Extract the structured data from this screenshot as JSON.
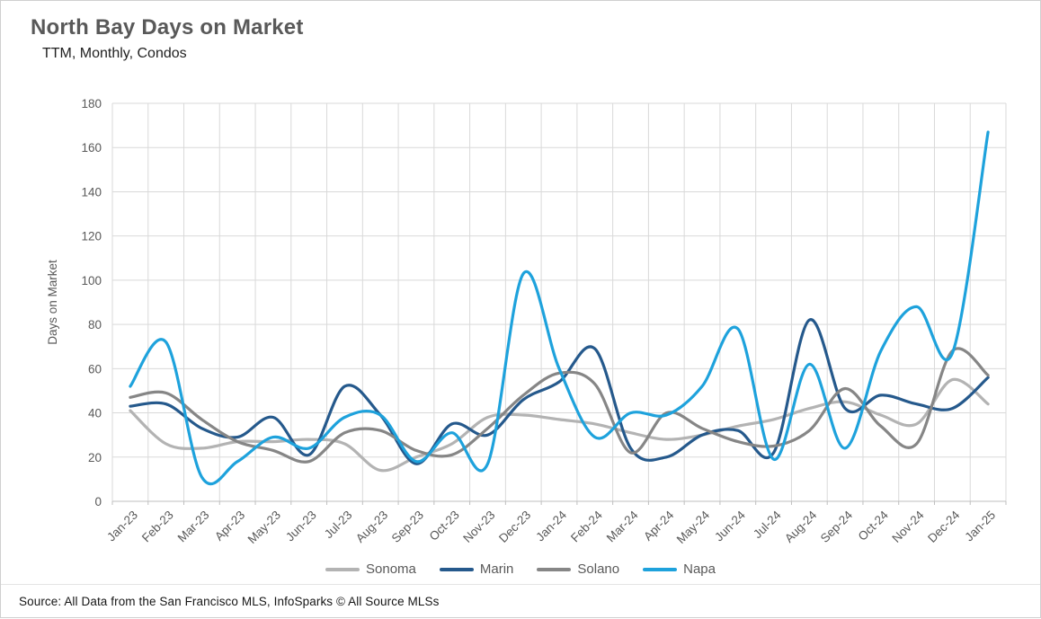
{
  "header": {
    "title": "North Bay Days on Market",
    "subtitle": "TTM, Monthly, Condos"
  },
  "source": {
    "text": "Source: All Data from the San Francisco MLS, InfoSparks © All Source MLSs"
  },
  "colors": {
    "gridline": "#d9d9d9",
    "axis_line": "#bfbfbf",
    "tick_label": "#595959",
    "axis_title": "#595959",
    "title": "#595959"
  },
  "chart_data": {
    "type": "line",
    "title": "North Bay Days on Market",
    "subtitle": "TTM, Monthly, Condos",
    "xlabel": "",
    "ylabel": "Days on Market",
    "ylim": [
      0,
      180
    ],
    "ytick_step": 20,
    "grid": true,
    "legend_position": "bottom",
    "line_style": "smooth",
    "categories": [
      "Jan-23",
      "Feb-23",
      "Mar-23",
      "Apr-23",
      "May-23",
      "Jun-23",
      "Jul-23",
      "Aug-23",
      "Sep-23",
      "Oct-23",
      "Nov-23",
      "Dec-23",
      "Jan-24",
      "Feb-24",
      "Mar-24",
      "Apr-24",
      "May-24",
      "Jun-24",
      "Jul-24",
      "Aug-24",
      "Sep-24",
      "Oct-24",
      "Nov-24",
      "Dec-24",
      "Jan-25"
    ],
    "series": [
      {
        "name": "Sonoma",
        "color": "#b3b3b3",
        "values": [
          41,
          26,
          24,
          27,
          27,
          28,
          26,
          14,
          20,
          26,
          38,
          39,
          37,
          35,
          31,
          28,
          30,
          34,
          37,
          42,
          45,
          39,
          35,
          55,
          44
        ]
      },
      {
        "name": "Marin",
        "color": "#25598c",
        "values": [
          43,
          44,
          33,
          29,
          38,
          21,
          52,
          39,
          17,
          35,
          30,
          46,
          54,
          69,
          24,
          20,
          30,
          32,
          22,
          82,
          42,
          48,
          44,
          42,
          56
        ]
      },
      {
        "name": "Solano",
        "color": "#868686",
        "values": [
          47,
          49,
          37,
          27,
          23,
          18,
          31,
          32,
          23,
          21,
          33,
          48,
          58,
          53,
          22,
          40,
          33,
          27,
          25,
          32,
          51,
          34,
          26,
          68,
          57
        ]
      },
      {
        "name": "Napa",
        "color": "#1ea2dc",
        "values": [
          52,
          72,
          11,
          18,
          29,
          24,
          38,
          39,
          18,
          31,
          17,
          103,
          60,
          29,
          40,
          39,
          52,
          78,
          19,
          62,
          24,
          68,
          88,
          67,
          167
        ]
      }
    ]
  }
}
